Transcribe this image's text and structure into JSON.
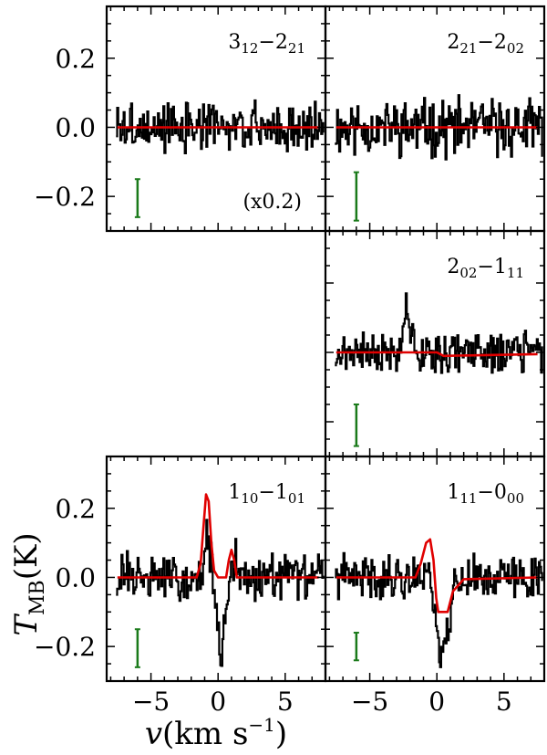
{
  "figure": {
    "ylabel_main": "T",
    "ylabel_sub": "MB",
    "ylabel_unit": "(K)",
    "xlabel_main": "v",
    "xlabel_unit": "(km s",
    "xlabel_exp": "−1",
    "xlabel_close": ")"
  },
  "chart_data": {
    "type": "line",
    "x_range": [
      -8.3,
      8.0
    ],
    "y_range": [
      -0.3,
      0.35
    ],
    "x_ticks": [
      -5,
      0,
      5
    ],
    "x_tick_labels": [
      "−5",
      "0",
      "5"
    ],
    "y_ticks": [
      -0.2,
      0.0,
      0.2
    ],
    "y_tick_labels": [
      "−0.2",
      "0.0",
      "0.2"
    ],
    "colors": {
      "observed": "#000000",
      "model": "#e00000",
      "error_bar": "#1a7a1a"
    },
    "panels": [
      {
        "id": "p312",
        "label_a": "3",
        "label_a_sub": "12",
        "label_b": "2",
        "label_b_sub": "21",
        "note": "(x0.2)",
        "error_bar": {
          "x": -6.0,
          "y_low": -0.26,
          "y_high": -0.15
        },
        "observed_seed": 3,
        "observed_amp": 0.055,
        "observed_features": [],
        "model": [
          [
            -7.5,
            0.0
          ],
          [
            7.5,
            0.0
          ]
        ]
      },
      {
        "id": "p221",
        "label_a": "2",
        "label_a_sub": "21",
        "label_b": "2",
        "label_b_sub": "02",
        "note": "",
        "error_bar": {
          "x": -6.0,
          "y_low": -0.27,
          "y_high": -0.13
        },
        "observed_seed": 11,
        "observed_amp": 0.065,
        "observed_features": [],
        "model": [
          [
            -7.5,
            0.0
          ],
          [
            7.5,
            0.0
          ]
        ]
      },
      {
        "id": "p202",
        "label_a": "2",
        "label_a_sub": "02",
        "label_b": "1",
        "label_b_sub": "11",
        "note": "",
        "error_bar": {
          "x": -6.0,
          "y_low": -0.27,
          "y_high": -0.15
        },
        "observed_seed": 21,
        "observed_amp": 0.045,
        "observed_features": [
          [
            -2.3,
            0.14,
            0.25
          ]
        ],
        "model": [
          [
            -7.5,
            0.0
          ],
          [
            0.0,
            0.0
          ],
          [
            0.5,
            -0.01
          ],
          [
            7.5,
            -0.005
          ]
        ]
      },
      {
        "id": "p110",
        "label_a": "1",
        "label_a_sub": "10",
        "label_b": "1",
        "label_b_sub": "01",
        "note": "",
        "error_bar": {
          "x": -6.0,
          "y_low": -0.26,
          "y_high": -0.15
        },
        "observed_seed": 31,
        "observed_amp": 0.055,
        "observed_features": [
          [
            -0.8,
            0.1,
            0.3
          ],
          [
            0.2,
            -0.22,
            0.35
          ],
          [
            1.2,
            0.06,
            0.25
          ]
        ],
        "model": [
          [
            -7.5,
            0.0
          ],
          [
            -1.6,
            0.0
          ],
          [
            -1.3,
            0.04
          ],
          [
            -1.1,
            0.14
          ],
          [
            -0.9,
            0.24
          ],
          [
            -0.7,
            0.22
          ],
          [
            -0.5,
            0.1
          ],
          [
            -0.3,
            0.02
          ],
          [
            0.0,
            0.0
          ],
          [
            0.6,
            0.0
          ],
          [
            0.8,
            0.05
          ],
          [
            1.0,
            0.08
          ],
          [
            1.2,
            0.05
          ],
          [
            1.4,
            0.0
          ],
          [
            7.5,
            0.0
          ]
        ]
      },
      {
        "id": "p111",
        "label_a": "1",
        "label_a_sub": "11",
        "label_b": "0",
        "label_b_sub": "00",
        "note": "",
        "error_bar": {
          "x": -6.0,
          "y_low": -0.24,
          "y_high": -0.16
        },
        "observed_seed": 41,
        "observed_amp": 0.05,
        "observed_features": [
          [
            0.3,
            -0.22,
            0.5
          ],
          [
            -0.6,
            0.07,
            0.3
          ]
        ],
        "model": [
          [
            -7.5,
            0.0
          ],
          [
            -1.6,
            0.0
          ],
          [
            -1.2,
            0.04
          ],
          [
            -0.8,
            0.1
          ],
          [
            -0.5,
            0.11
          ],
          [
            -0.25,
            0.05
          ],
          [
            -0.05,
            -0.06
          ],
          [
            0.1,
            -0.1
          ],
          [
            0.8,
            -0.1
          ],
          [
            1.2,
            -0.04
          ],
          [
            2.0,
            -0.005
          ],
          [
            7.5,
            0.0
          ]
        ]
      }
    ]
  }
}
